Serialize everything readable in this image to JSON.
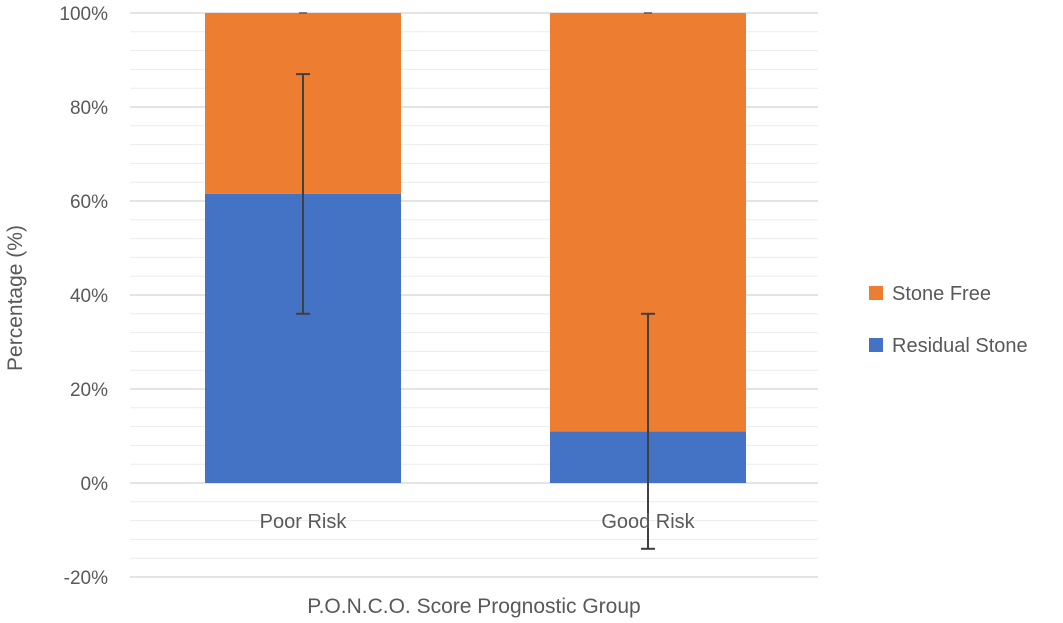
{
  "chart_data": {
    "type": "bar",
    "stacked": true,
    "categories": [
      "Poor Risk",
      "Good Risk"
    ],
    "series": [
      {
        "name": "Residual Stone",
        "values": [
          61.5,
          11
        ],
        "color": "#4472C4"
      },
      {
        "name": "Stone Free",
        "values": [
          38.5,
          89
        ],
        "color": "#ED7D31"
      }
    ],
    "error_bars": [
      {
        "category": "Poor Risk",
        "center": 61.5,
        "low": 36,
        "high": 87
      },
      {
        "category": "Good Risk",
        "center": 11,
        "low": -14,
        "high": 36
      }
    ],
    "ylim": [
      -20,
      100
    ],
    "yticks": [
      -20,
      0,
      20,
      40,
      60,
      80,
      100
    ],
    "ytick_labels": [
      "-20%",
      "0%",
      "20%",
      "40%",
      "60%",
      "80%",
      "100%"
    ],
    "title": "",
    "xlabel": "P.O.N.C.O. Score Prognostic Group",
    "ylabel": "Percentage (%)",
    "grid": true,
    "legend_position": "right",
    "legend": [
      "Stone Free",
      "Residual Stone"
    ]
  }
}
